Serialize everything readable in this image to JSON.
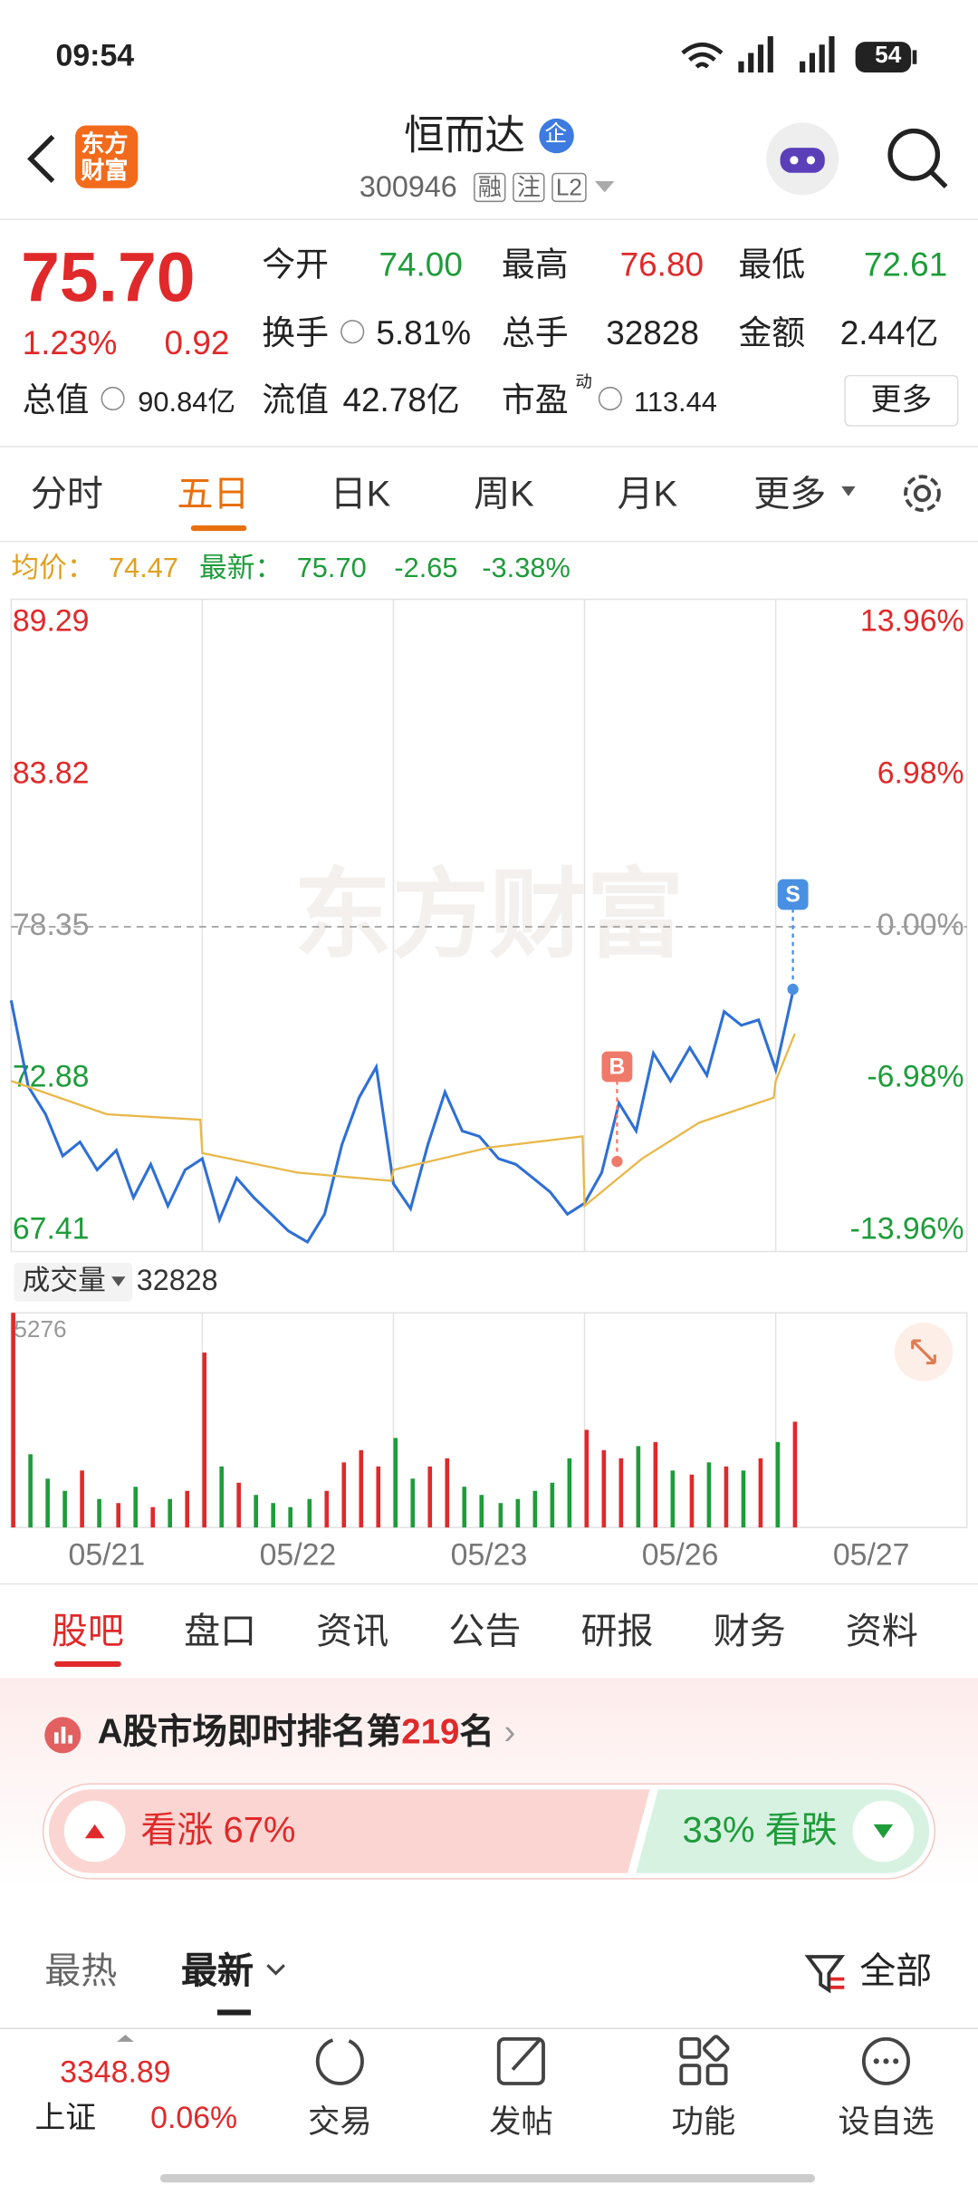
{
  "status": {
    "time": "09:54",
    "battery": "54"
  },
  "header": {
    "logo": [
      "东方",
      "财富"
    ],
    "name": "恒而达",
    "badge": "企",
    "code": "300946",
    "tags": [
      "融",
      "注",
      "L2"
    ]
  },
  "quote": {
    "price": "75.70",
    "pct": "1.23%",
    "change": "0.92",
    "fields": [
      [
        "今开",
        "74.00"
      ],
      [
        "最高",
        "76.80"
      ],
      [
        "最低",
        "72.61"
      ],
      [
        "换手",
        "5.81%"
      ],
      [
        "总手",
        "32828"
      ],
      [
        "金额",
        "2.44亿"
      ]
    ],
    "total_value": [
      "总值",
      "90.84亿"
    ],
    "float_value": [
      "流值",
      "42.78亿"
    ],
    "pe": [
      "市盈",
      "动",
      "113.44"
    ],
    "more": "更多"
  },
  "tabs": {
    "items": [
      "分时",
      "五日",
      "日K",
      "周K",
      "月K",
      "更多"
    ],
    "active": 1
  },
  "info": {
    "avg_label": "均价：",
    "avg": "74.47",
    "last_label": "最新：",
    "last": "75.70",
    "chg": "-2.65",
    "chg_pct": "-3.38%"
  },
  "chart_data": {
    "type": "line",
    "watermark": "东方财富",
    "categories": [
      "05/21",
      "05/22",
      "05/23",
      "05/26",
      "05/27"
    ],
    "xlim": [
      0,
      5
    ],
    "ylim": [
      67.41,
      89.29
    ],
    "yticks": [
      89.29,
      83.82,
      78.35,
      72.88,
      67.41
    ],
    "prev_close": 78.35,
    "y2lim": [
      -13.96,
      13.96
    ],
    "y2ticks": [
      {
        "value": 13.96,
        "label": "13.96%"
      },
      {
        "value": 6.98,
        "label": "6.98%"
      },
      {
        "value": 0,
        "label": "0.00%"
      },
      {
        "value": -6.98,
        "label": "-6.98%"
      },
      {
        "value": -13.96,
        "label": "-13.96%"
      }
    ],
    "series": [
      {
        "color": "#2e6fd6",
        "x": [
          0,
          0.09,
          0.18,
          0.27,
          0.36,
          0.45,
          0.55,
          0.64,
          0.73,
          0.82,
          0.91,
          1,
          1.09,
          1.18,
          1.27,
          1.36,
          1.45,
          1.55,
          1.64,
          1.73,
          1.82,
          1.91,
          2,
          2.09,
          2.18,
          2.27,
          2.36,
          2.45,
          2.55,
          2.64,
          2.73,
          2.82,
          2.91,
          3,
          3.09,
          3.18,
          3.27,
          3.36,
          3.45,
          3.55,
          3.64,
          3.73,
          3.82,
          3.91,
          4,
          4.09
        ],
        "values": [
          75.7,
          72.6,
          71.6,
          70.1,
          70.6,
          69.6,
          70.3,
          68.6,
          69.8,
          68.3,
          69.6,
          70.0,
          67.8,
          69.3,
          68.6,
          68.0,
          67.4,
          67.0,
          68.0,
          70.5,
          72.2,
          73.3,
          69.1,
          68.2,
          70.5,
          72.4,
          71.0,
          70.8,
          70.0,
          69.8,
          69.3,
          68.8,
          68.0,
          68.4,
          69.5,
          72.0,
          71.0,
          73.8,
          72.8,
          74.0,
          73.0,
          75.3,
          74.8,
          75.0,
          73.2,
          76.0
        ]
      },
      {
        "color": "#e8b84a",
        "x": [
          0,
          0.5,
          0.99,
          1,
          1.5,
          1.99,
          2,
          2.5,
          2.99,
          3,
          3.3,
          3.6,
          3.99,
          4,
          4.1
        ],
        "values": [
          72.8,
          71.6,
          71.4,
          70.2,
          69.5,
          69.2,
          69.6,
          70.4,
          70.8,
          68.3,
          70.0,
          71.3,
          72.2,
          72.8,
          74.5
        ]
      }
    ],
    "markers": [
      {
        "label": "B",
        "x": 3.17,
        "value": 69.9,
        "color": "#f07a6a"
      },
      {
        "label": "S",
        "x": 4.09,
        "value": 76.1,
        "color": "#4a90e2"
      }
    ],
    "volume": {
      "label": "成交量",
      "total": "32828",
      "max": 5276,
      "values": [
        5276,
        1800,
        1200,
        900,
        1400,
        700,
        600,
        1000,
        500,
        700,
        900,
        4300,
        1500,
        1100,
        800,
        600,
        500,
        700,
        900,
        1600,
        1900,
        1500,
        2200,
        1200,
        1500,
        1700,
        1000,
        800,
        600,
        700,
        900,
        1100,
        1700,
        2400,
        1900,
        1700,
        2000,
        2100,
        1400,
        1300,
        1600,
        1500,
        1400,
        1700,
        2100,
        2600
      ],
      "colors": [
        "#e0292a",
        "#1e9c3a",
        "#1e9c3a",
        "#1e9c3a",
        "#e0292a",
        "#1e9c3a",
        "#e0292a",
        "#1e9c3a",
        "#e0292a",
        "#1e9c3a",
        "#e0292a",
        "#e0292a",
        "#1e9c3a",
        "#e0292a",
        "#1e9c3a",
        "#1e9c3a",
        "#1e9c3a",
        "#1e9c3a",
        "#e0292a",
        "#e0292a",
        "#e0292a",
        "#e0292a",
        "#1e9c3a",
        "#1e9c3a",
        "#e0292a",
        "#e0292a",
        "#1e9c3a",
        "#1e9c3a",
        "#1e9c3a",
        "#1e9c3a",
        "#1e9c3a",
        "#1e9c3a",
        "#1e9c3a",
        "#e0292a",
        "#e0292a",
        "#e0292a",
        "#1e9c3a",
        "#e0292a",
        "#1e9c3a",
        "#e0292a",
        "#1e9c3a",
        "#e0292a",
        "#1e9c3a",
        "#e0292a",
        "#1e9c3a",
        "#e0292a"
      ]
    }
  },
  "section_tabs": {
    "items": [
      "股吧",
      "盘口",
      "资讯",
      "公告",
      "研报",
      "财务",
      "资料"
    ],
    "active": 0
  },
  "ranking": {
    "prefix": "A股市场即时排名第",
    "rank": "219",
    "suffix": "名"
  },
  "sentiment": {
    "bull_label": "看涨 67%",
    "bull": 67,
    "bear_label": "33% 看跌",
    "bear": 33
  },
  "filters": {
    "hot": "最热",
    "new": "最新",
    "all": "全部"
  },
  "bottom_nav": {
    "index_value": "3348.89",
    "index_name": "上证",
    "index_pct": "0.06%",
    "items": [
      "交易",
      "发帖",
      "功能",
      "设自选"
    ]
  }
}
